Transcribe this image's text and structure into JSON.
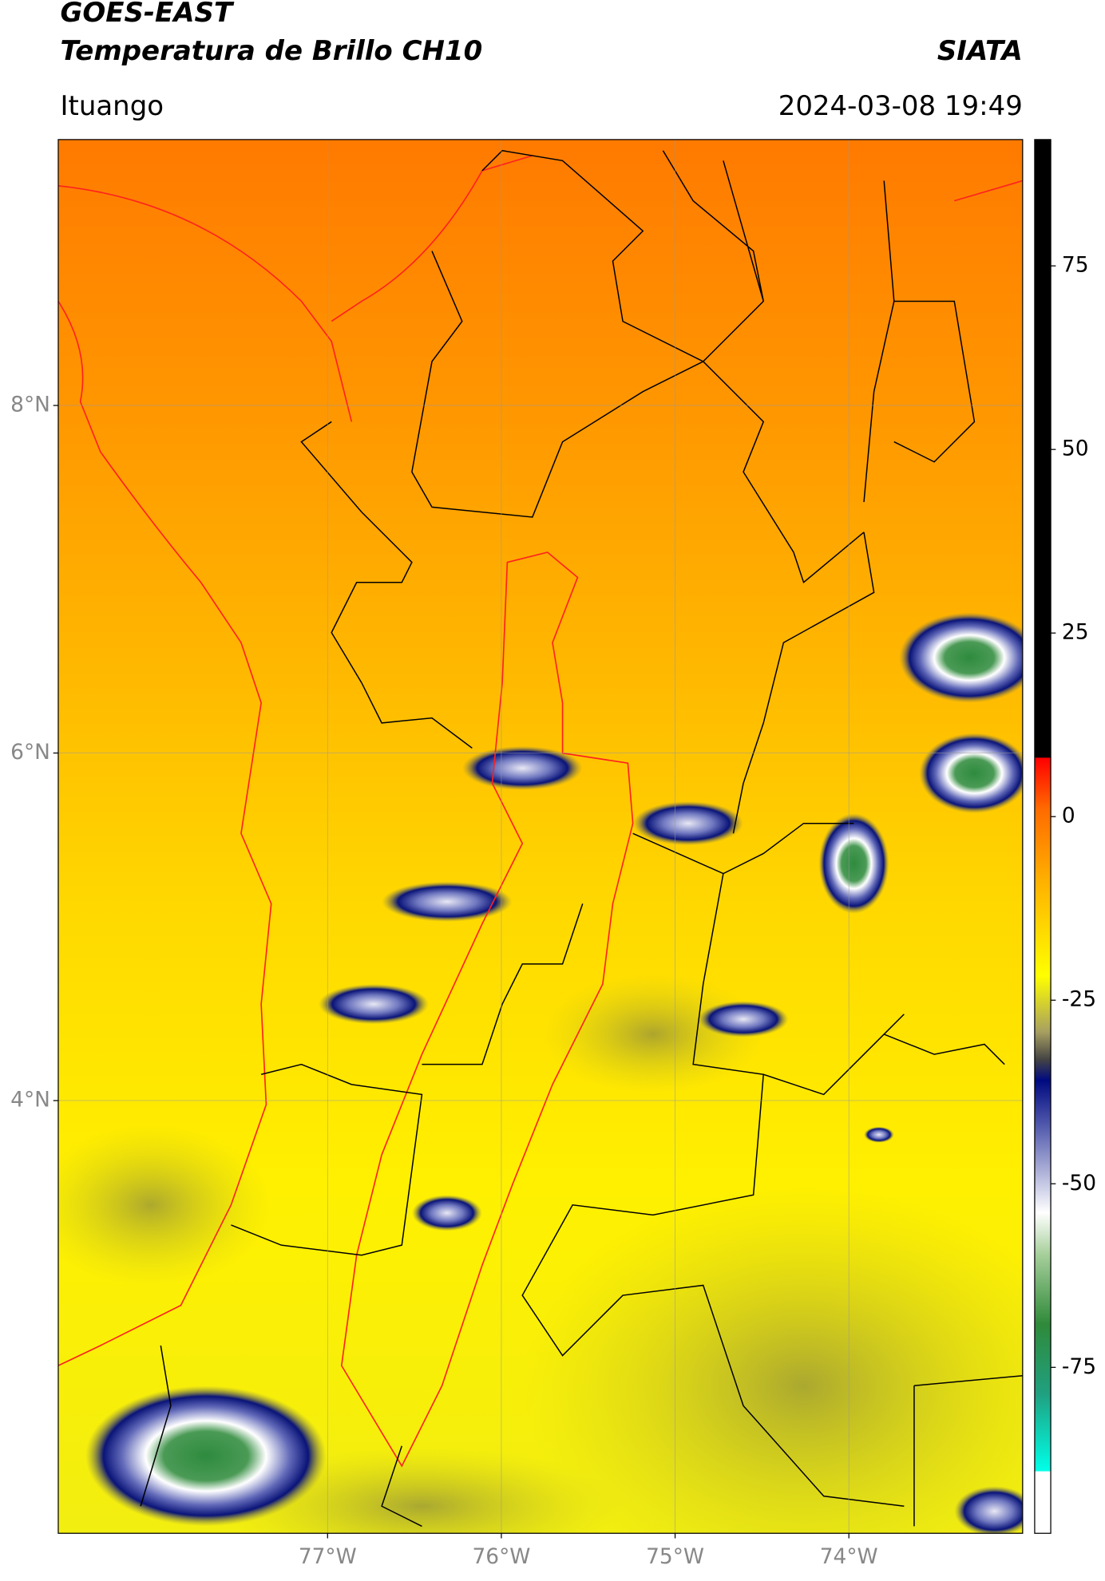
{
  "chart_data": {
    "type": "map",
    "title": "GOES-EAST",
    "subtitle": "Temperatura de Brillo CH10",
    "source": "SIATA",
    "location": "Ituango",
    "datetime": "2024-03-08 19:49",
    "xlim": [
      -78.55,
      -73.0
    ],
    "ylim": [
      1.51,
      9.53
    ],
    "xticks": [
      {
        "value": -77,
        "label": "77°W"
      },
      {
        "value": -76,
        "label": "76°W"
      },
      {
        "value": -75,
        "label": "75°W"
      },
      {
        "value": -74,
        "label": "74°W"
      }
    ],
    "yticks": [
      {
        "value": 4,
        "label": "4°N"
      },
      {
        "value": 6,
        "label": "6°N"
      },
      {
        "value": 8,
        "label": "8°N"
      }
    ],
    "grid": true,
    "colorbar": {
      "lim": [
        -97.6,
        92.2
      ],
      "ticks": [
        -75,
        -50,
        -25,
        0,
        25,
        50,
        75
      ]
    }
  }
}
